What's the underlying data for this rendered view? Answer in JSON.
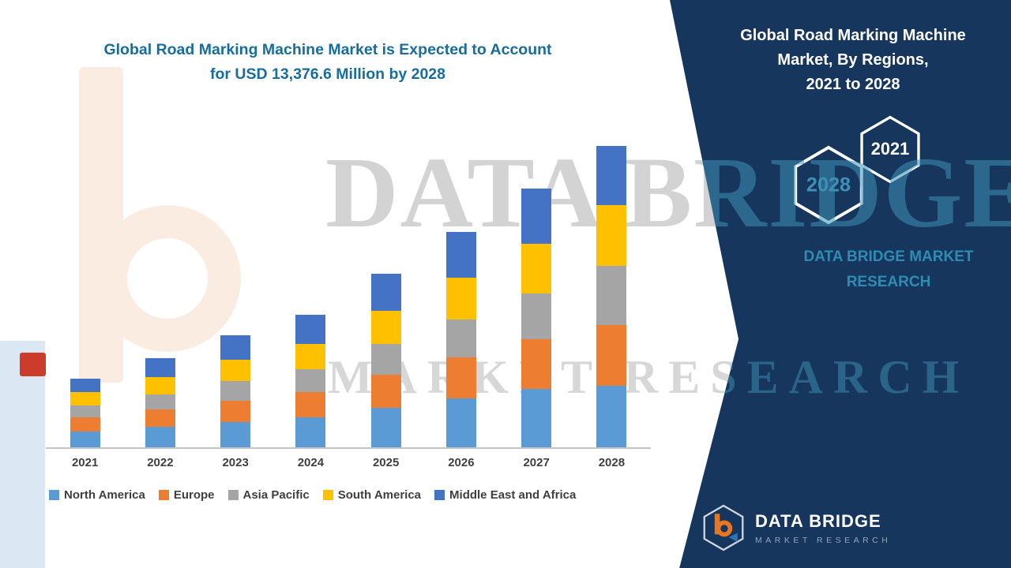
{
  "title": {
    "line1": "Global Road Marking Machine Market is Expected to Account",
    "line2": "for  USD 13,376.6 Million by 2028"
  },
  "side_panel": {
    "heading_line1": "Global Road Marking Machine",
    "heading_line2": "Market, By Regions,",
    "heading_line3": "2021 to 2028",
    "hexagon_front_label": "2028",
    "hexagon_back_label": "2021",
    "brand_line1": "DATA BRIDGE MARKET",
    "brand_line2": "RESEARCH"
  },
  "watermark": {
    "line1": "DATA BRIDGE",
    "line2": "MARKET RESEARCH"
  },
  "footer_logo": {
    "name": "DATA BRIDGE",
    "tagline": "MARKET RESEARCH"
  },
  "colors": {
    "panel_navy": "#17365d",
    "title_teal": "#186d9c",
    "brand_teal": "#2e8cb4"
  },
  "chart_data": {
    "type": "bar",
    "stacked": true,
    "title": "Global Road Marking Machine Market is Expected to Account for USD 13,376.6 Million by 2028",
    "xlabel": "",
    "ylabel": "",
    "unit": "USD Million",
    "categories": [
      "2021",
      "2022",
      "2023",
      "2024",
      "2025",
      "2026",
      "2027",
      "2028"
    ],
    "series": [
      {
        "name": "North America",
        "color": "#5B9BD5",
        "values": [
          700,
          910,
          1120,
          1330,
          1750,
          2170,
          2590,
          2730
        ]
      },
      {
        "name": "Europe",
        "color": "#ED7D31",
        "values": [
          630,
          770,
          945,
          1120,
          1470,
          1820,
          2205,
          2695
        ]
      },
      {
        "name": "Asia Pacific",
        "color": "#A5A5A5",
        "values": [
          525,
          665,
          875,
          1015,
          1365,
          1680,
          2030,
          2625
        ]
      },
      {
        "name": "South America",
        "color": "#FFC000",
        "values": [
          595,
          770,
          945,
          1120,
          1470,
          1855,
          2205,
          2695
        ]
      },
      {
        "name": "Middle East and Africa",
        "color": "#4472C4",
        "values": [
          595,
          840,
          1085,
          1295,
          1645,
          2030,
          2450,
          2631.6
        ]
      }
    ],
    "ylim": [
      0,
      14000
    ],
    "grid": false,
    "legend_position": "bottom"
  }
}
